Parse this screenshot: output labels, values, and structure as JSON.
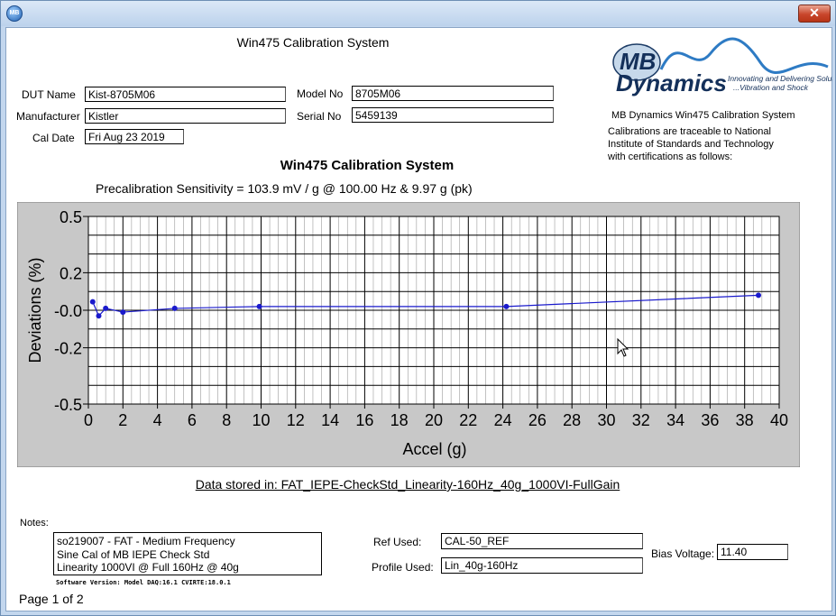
{
  "window": {
    "app_icon": "mb-dynamics-app-icon",
    "close_label": "✕"
  },
  "header": {
    "title": "Win475 Calibration System"
  },
  "logo": {
    "brand_text_top": "MB",
    "brand_text": "Dynamics",
    "tagline_1": "Innovating and Delivering Solutio",
    "tagline_2": "...Vibration and Shock"
  },
  "dut": {
    "dut_name_label": "DUT Name",
    "dut_name": "Kist-8705M06",
    "manufacturer_label": "Manufacturer",
    "manufacturer": "Kistler",
    "cal_date_label": "Cal Date",
    "cal_date": "Fri Aug 23 2019",
    "model_no_label": "Model No",
    "model_no": "8705M06",
    "serial_no_label": "Serial No",
    "serial_no": "5459139"
  },
  "info": {
    "system_name": "MB Dynamics Win475 Calibration System",
    "trace_1": "Calibrations are traceable to National",
    "trace_2": "Institute of Standards and Technology",
    "trace_3": "with certifications as follows:"
  },
  "chart_header": {
    "title": "Win475 Calibration System",
    "precal": "Precalibration Sensitivity = 103.9 mV / g  @  100.00 Hz  &   9.97 g (pk)"
  },
  "chart_data": {
    "type": "line",
    "title": "Win475 Calibration System",
    "xlabel": "Accel (g)",
    "ylabel": "Deviations (%)",
    "xlim": [
      0,
      40
    ],
    "ylim": [
      -0.5,
      0.5
    ],
    "grid": true,
    "x_ticks": [
      "0",
      "2",
      "4",
      "6",
      "8",
      "10",
      "12",
      "14",
      "16",
      "18",
      "20",
      "22",
      "24",
      "26",
      "28",
      "30",
      "32",
      "34",
      "36",
      "38",
      "40"
    ],
    "y_ticks": [
      "0.5",
      "0.2",
      "-0.0",
      "-0.2",
      "-0.5"
    ],
    "y_tick_values": [
      0.5,
      0.2,
      0.0,
      -0.2,
      -0.5
    ],
    "series": [
      {
        "color": "#1a1acc",
        "x": [
          0.25,
          0.6,
          1.0,
          2.0,
          5.0,
          9.9,
          24.2,
          38.8
        ],
        "y": [
          0.045,
          -0.03,
          0.01,
          -0.01,
          0.01,
          0.02,
          0.02,
          0.08
        ]
      }
    ]
  },
  "data_stored": "Data stored in:  FAT_IEPE-CheckStd_Linearity-160Hz_40g_1000VI-FullGain",
  "notes": {
    "label": "Notes:",
    "line1": "so219007 - FAT - Medium Frequency",
    "line2": "Sine Cal of MB IEPE Check Std",
    "line3": "Linearity 1000VI @ Full 160Hz @ 40g"
  },
  "refs": {
    "ref_used_label": "Ref Used:",
    "ref_used": "CAL-50_REF",
    "profile_used_label": "Profile Used:",
    "profile_used": "Lin_40g-160Hz",
    "bias_label": "Bias Voltage:",
    "bias_value": "11.40"
  },
  "software_version": "Software Version: Model DAQ:16.1 CVIRTE:18.0.1",
  "page": "Page 1 of 2"
}
